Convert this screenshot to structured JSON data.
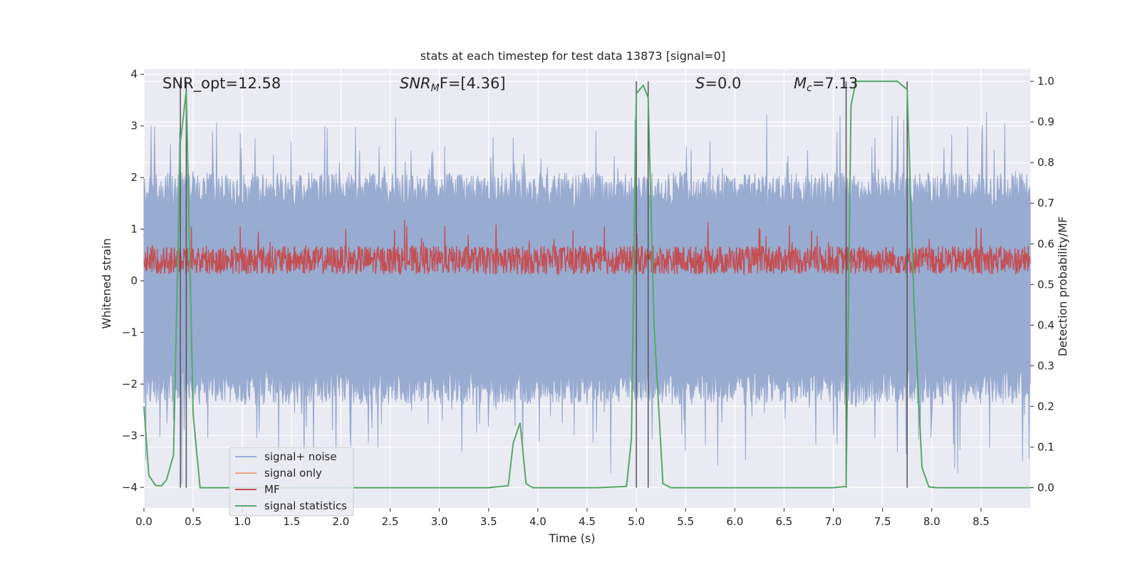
{
  "chart_data": {
    "type": "line",
    "title": "stats at each timestep for test data 13873 [signal=0]",
    "xlabel": "Time (s)",
    "ylabel_left": "Whitened strain",
    "ylabel_right": "Detection probability/MF",
    "xlim": [
      0.0,
      9.0
    ],
    "ylim_left": [
      -4.4,
      4.1
    ],
    "ylim_right": [
      -0.05,
      1.03
    ],
    "x_ticks": [
      "0.0",
      "0.5",
      "1.0",
      "1.5",
      "2.0",
      "2.5",
      "3.0",
      "3.5",
      "4.0",
      "4.5",
      "5.0",
      "5.5",
      "6.0",
      "6.5",
      "7.0",
      "7.5",
      "8.0",
      "8.5"
    ],
    "y_ticks_left": [
      "4",
      "3",
      "2",
      "1",
      "0",
      "−1",
      "−2",
      "−3",
      "−4"
    ],
    "y_ticks_right": [
      "1.0",
      "0.9",
      "0.8",
      "0.7",
      "0.6",
      "0.5",
      "0.4",
      "0.3",
      "0.2",
      "0.1",
      "0.0"
    ],
    "grid": true,
    "legend_position": "lower-left",
    "annotations": {
      "snr_opt": "SNR_opt=12.58",
      "snr_mf_base": "SNR",
      "snr_mf_sub": "M",
      "snr_mf_rest": "F=[4.36]",
      "s_italic": "S",
      "s_rest": "=0.0",
      "mc_base": "M",
      "mc_sub": "c",
      "mc_rest": "=7.13"
    },
    "colors": {
      "background": "#eaeaf2",
      "grid": "#ffffff",
      "noise": "#98abd0",
      "signal_only": "#e8a68a",
      "mf": "#c44e52",
      "stat": "#55a868",
      "vline": "#555555"
    },
    "series": [
      {
        "name": "signal+ noise",
        "kind": "noise",
        "envelope_left": [
          -1.7,
          1.4
        ],
        "extremes_left": [
          -4.0,
          3.4
        ]
      },
      {
        "name": "signal only",
        "kind": "flat",
        "values_left": [
          0.0
        ]
      },
      {
        "name": "MF",
        "kind": "noise",
        "envelope_right": [
          0.525,
          0.595
        ],
        "extremes_right": [
          0.52,
          0.66
        ]
      },
      {
        "name": "signal statistics",
        "x": [
          0.0,
          0.05,
          0.12,
          0.18,
          0.23,
          0.3,
          0.37,
          0.43,
          0.5,
          0.57,
          0.65,
          0.8,
          1.0,
          1.2,
          1.5,
          1.8,
          2.0,
          2.5,
          3.0,
          3.5,
          3.7,
          3.75,
          3.82,
          3.88,
          3.95,
          4.05,
          4.3,
          4.6,
          4.9,
          4.95,
          5.0,
          5.07,
          5.12,
          5.18,
          5.27,
          5.35,
          5.5,
          6.0,
          6.5,
          7.0,
          7.13,
          7.18,
          7.23,
          7.3,
          7.5,
          7.65,
          7.75,
          7.82,
          7.9,
          7.97,
          8.05,
          8.5,
          9.0
        ],
        "values": [
          0.2,
          0.03,
          0.005,
          0.005,
          0.02,
          0.08,
          0.85,
          0.975,
          0.18,
          0.0,
          0.0,
          0.0,
          0.0,
          0.0,
          0.0,
          0.0,
          0.0,
          0.0,
          0.0,
          0.0,
          0.005,
          0.11,
          0.16,
          0.01,
          0.0,
          0.0,
          0.0,
          0.0,
          0.003,
          0.12,
          0.97,
          0.99,
          0.96,
          0.4,
          0.01,
          0.0,
          0.0,
          0.0,
          0.0,
          0.0,
          0.003,
          0.94,
          1.0,
          1.0,
          1.0,
          1.0,
          0.98,
          0.45,
          0.05,
          0.002,
          0.0,
          0.0,
          0.0
        ]
      }
    ],
    "vertical_lines_x": [
      0.37,
      0.43,
      5.0,
      5.12,
      7.13,
      7.75
    ]
  }
}
